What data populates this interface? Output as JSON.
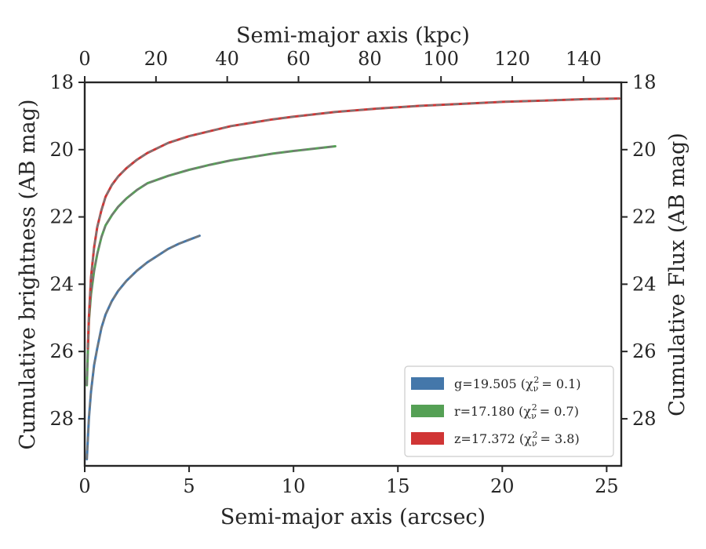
{
  "chart_data": {
    "type": "line",
    "xlabel": "Semi-major axis (arcsec)",
    "ylabel": "Cumulative brightness (AB mag)",
    "x2label": "Semi-major axis (kpc)",
    "y2label": "Cumulative Flux (AB mag)",
    "xlim": [
      0,
      25.7
    ],
    "ylim": [
      29.4,
      18
    ],
    "x2lim": [
      0,
      150.6
    ],
    "x_ticks": [
      0,
      5,
      10,
      15,
      20,
      25
    ],
    "y_ticks": [
      18,
      20,
      22,
      24,
      26,
      28
    ],
    "x2_ticks": [
      0,
      20,
      40,
      60,
      80,
      100,
      120,
      140
    ],
    "y_inverted": true,
    "grid": false,
    "legend_position": "lower-right",
    "series": [
      {
        "name": "g=19.505",
        "chi_label": "(χ",
        "chi_value": "= 0.1)",
        "color": "#4477aa",
        "x": [
          0.1,
          0.15,
          0.2,
          0.3,
          0.45,
          0.6,
          0.8,
          1.0,
          1.3,
          1.6,
          2.0,
          2.5,
          3.0,
          3.5,
          4.0,
          4.5,
          5.0,
          5.5
        ],
        "y": [
          29.2,
          28.6,
          28.0,
          27.2,
          26.4,
          25.9,
          25.3,
          24.9,
          24.5,
          24.2,
          23.9,
          23.6,
          23.35,
          23.15,
          22.95,
          22.8,
          22.68,
          22.56
        ]
      },
      {
        "name": "r=17.180",
        "chi_label": "(χ",
        "chi_value": "= 0.7)",
        "color": "#55a055",
        "x": [
          0.1,
          0.15,
          0.2,
          0.3,
          0.45,
          0.6,
          0.8,
          1.0,
          1.3,
          1.6,
          2.0,
          2.5,
          3.0,
          4.0,
          5.0,
          6.0,
          7.0,
          8.0,
          9.0,
          10.0,
          11.0,
          12.0
        ],
        "y": [
          27.0,
          26.0,
          25.1,
          24.3,
          23.6,
          23.1,
          22.6,
          22.25,
          21.95,
          21.7,
          21.45,
          21.2,
          21.0,
          20.78,
          20.6,
          20.45,
          20.32,
          20.22,
          20.12,
          20.04,
          19.97,
          19.9
        ]
      },
      {
        "name": "z=17.372",
        "chi_label": "(χ",
        "chi_value": "= 3.8)",
        "color": "#d03535",
        "x": [
          0.15,
          0.2,
          0.3,
          0.45,
          0.6,
          0.8,
          1.0,
          1.3,
          1.6,
          2.0,
          2.5,
          3.0,
          4.0,
          5.0,
          6.0,
          7.0,
          8.0,
          9.0,
          10.0,
          12.0,
          14.0,
          16.0,
          18.0,
          20.0,
          22.0,
          24.0,
          25.6
        ],
        "y": [
          25.9,
          25.0,
          23.8,
          22.9,
          22.3,
          21.8,
          21.4,
          21.05,
          20.8,
          20.55,
          20.3,
          20.1,
          19.8,
          19.6,
          19.45,
          19.3,
          19.2,
          19.1,
          19.02,
          18.88,
          18.78,
          18.7,
          18.64,
          18.58,
          18.54,
          18.5,
          18.48
        ]
      }
    ]
  }
}
